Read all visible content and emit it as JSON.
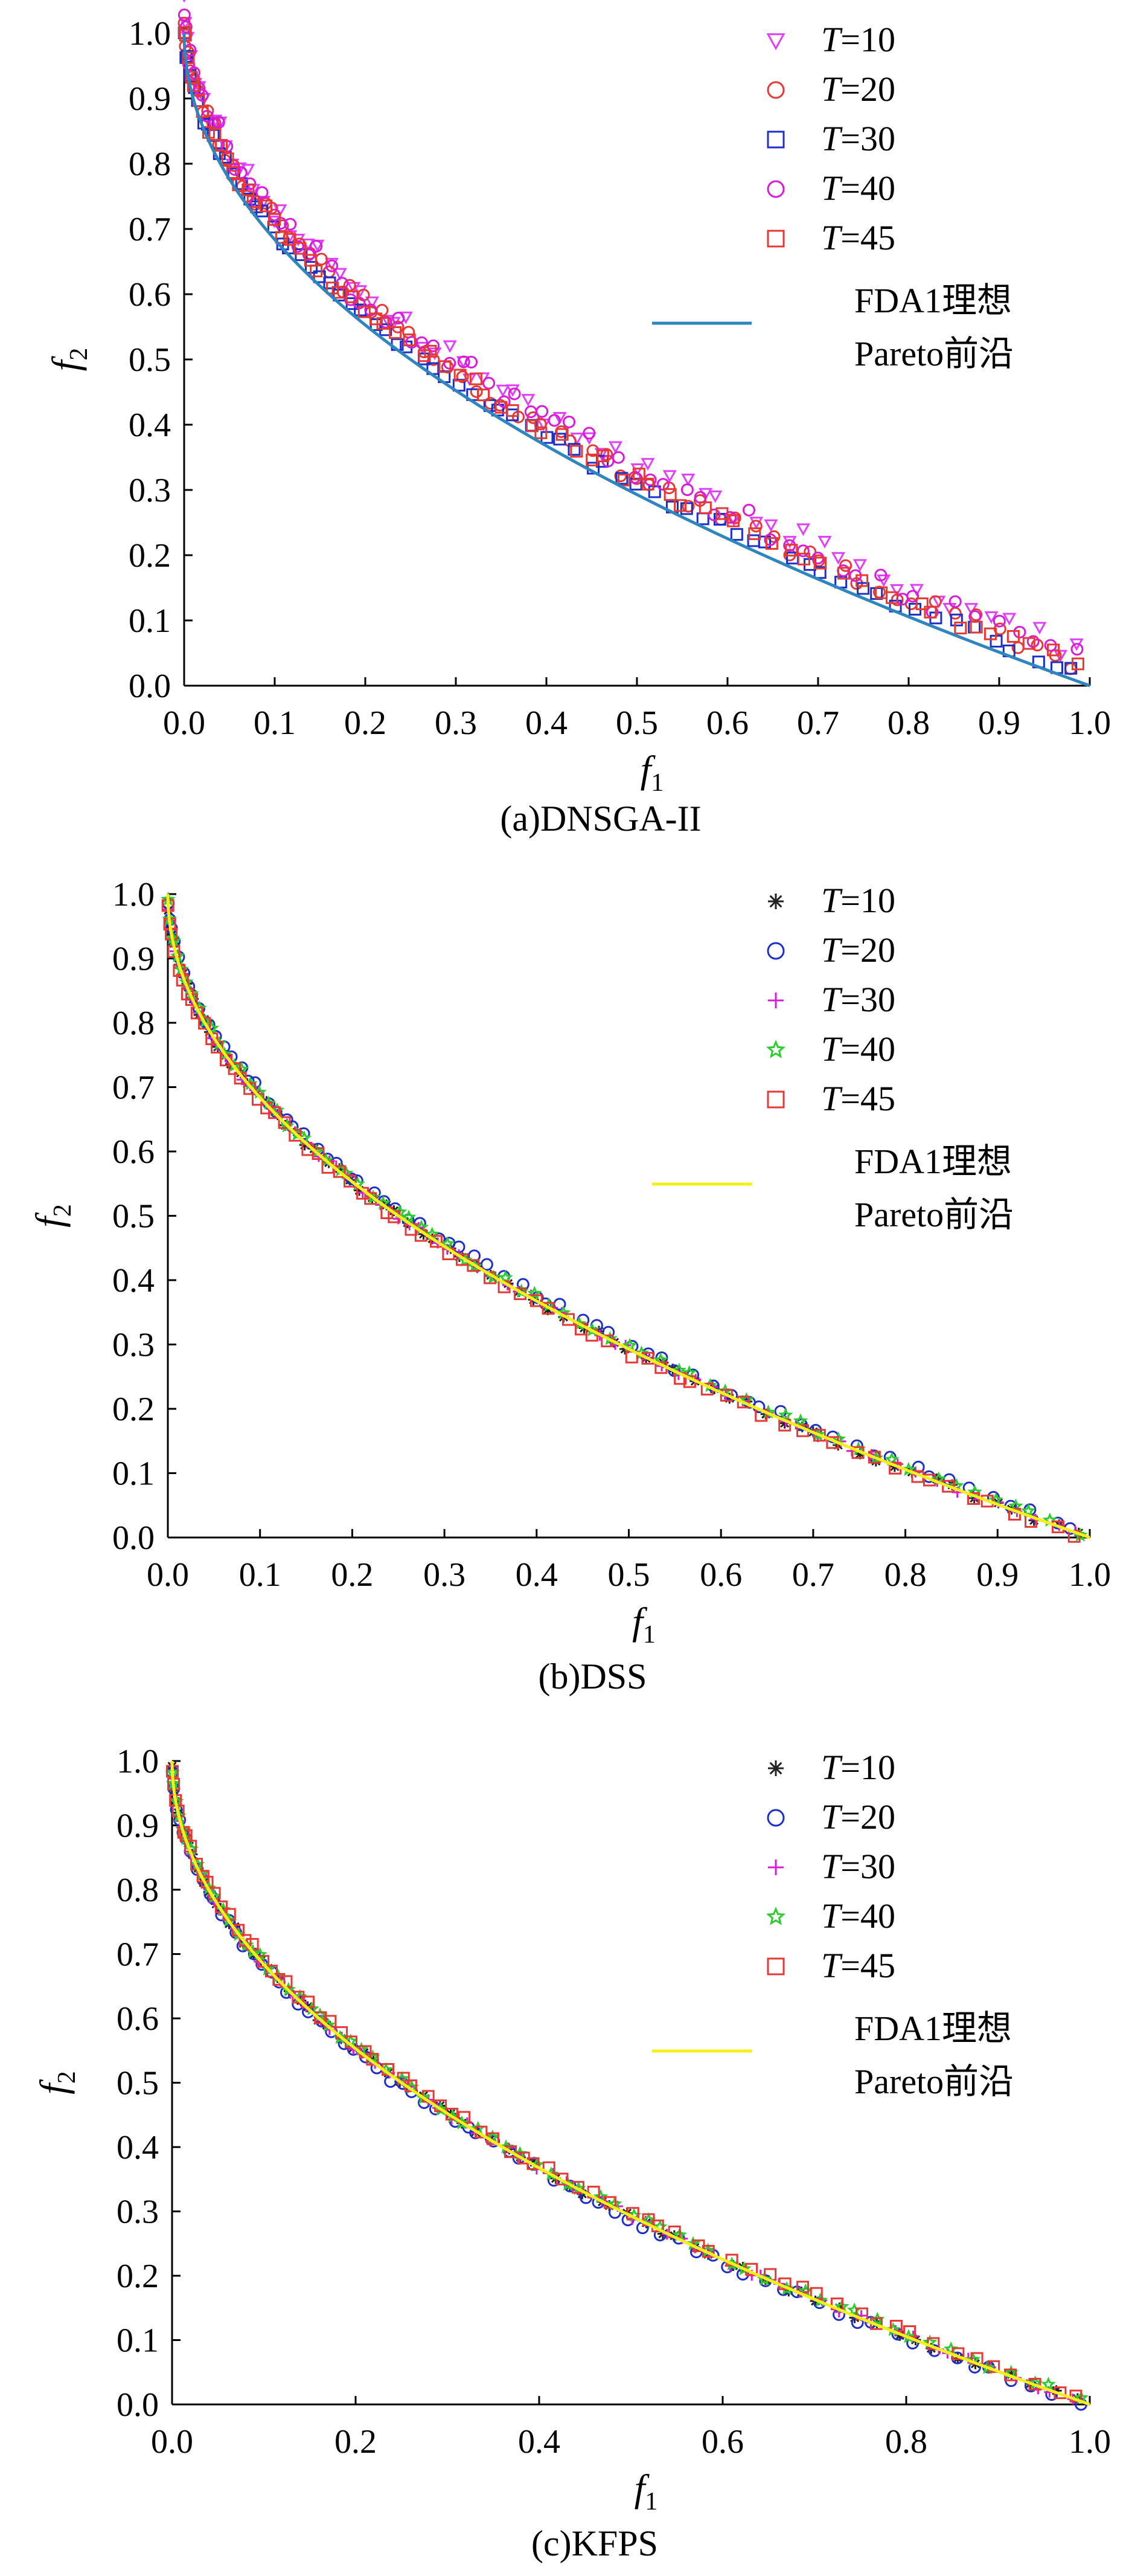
{
  "chart_data": [
    {
      "type": "scatter",
      "caption": "(a)DNSGA-II",
      "xlabel": "f",
      "xlabel_sub": "1",
      "ylabel": "f",
      "ylabel_sub": "2",
      "xlim": [
        0,
        1
      ],
      "ylim": [
        0,
        1
      ],
      "xticks": [
        "0.0",
        "0.1",
        "0.2",
        "0.3",
        "0.4",
        "0.5",
        "0.6",
        "0.7",
        "0.8",
        "0.9",
        "1.0"
      ],
      "yticks": [
        "0.0",
        "0.1",
        "0.2",
        "0.3",
        "0.4",
        "0.5",
        "0.6",
        "0.7",
        "0.8",
        "0.9",
        "1.0"
      ],
      "grid": false,
      "legend_position": "top-right",
      "reference_line": {
        "label_line1": "FDA1理想",
        "label_line2": "Pareto前沿",
        "color": "#2e86c1",
        "function": "1 - sqrt(x)"
      },
      "series": [
        {
          "name_prefix": "T",
          "name_value": "=10",
          "marker": "triangle-down",
          "color": "#e040fb",
          "offset": 0.045
        },
        {
          "name_prefix": "T",
          "name_value": "=20",
          "marker": "circle",
          "color": "#e53935",
          "offset": 0.03
        },
        {
          "name_prefix": "T",
          "name_value": "=30",
          "marker": "square",
          "color": "#1e2fc8",
          "offset": 0.015
        },
        {
          "name_prefix": "T",
          "name_value": "=40",
          "marker": "circle",
          "color": "#d81bd8",
          "offset": 0.04
        },
        {
          "name_prefix": "T",
          "name_value": "=45",
          "marker": "square",
          "color": "#e53935",
          "offset": 0.025
        }
      ]
    },
    {
      "type": "scatter",
      "caption": "(b)DSS",
      "xlabel": "f",
      "xlabel_sub": "1",
      "ylabel": "f",
      "ylabel_sub": "2",
      "xlim": [
        0,
        1
      ],
      "ylim": [
        0,
        1
      ],
      "xticks": [
        "0.0",
        "0.1",
        "0.2",
        "0.3",
        "0.4",
        "0.5",
        "0.6",
        "0.7",
        "0.8",
        "0.9",
        "1.0"
      ],
      "yticks": [
        "0.0",
        "0.1",
        "0.2",
        "0.3",
        "0.4",
        "0.5",
        "0.6",
        "0.7",
        "0.8",
        "0.9",
        "1.0"
      ],
      "grid": false,
      "legend_position": "top-right",
      "reference_line": {
        "label_line1": "FDA1理想",
        "label_line2": "Pareto前沿",
        "color": "#f5ef1a",
        "function": "1 - sqrt(x)"
      },
      "series": [
        {
          "name_prefix": "T",
          "name_value": "=10",
          "marker": "asterisk",
          "color": "#222222",
          "offset": 0.0
        },
        {
          "name_prefix": "T",
          "name_value": "=20",
          "marker": "circle",
          "color": "#1e2fc8",
          "offset": 0.008
        },
        {
          "name_prefix": "T",
          "name_value": "=30",
          "marker": "plus",
          "color": "#d81bd8",
          "offset": 0.0
        },
        {
          "name_prefix": "T",
          "name_value": "=40",
          "marker": "star",
          "color": "#2ecc2e",
          "offset": 0.004
        },
        {
          "name_prefix": "T",
          "name_value": "=45",
          "marker": "square",
          "color": "#e53935",
          "offset": -0.004
        }
      ]
    },
    {
      "type": "scatter",
      "caption": "(c)KFPS",
      "xlabel": "f",
      "xlabel_sub": "1",
      "ylabel": "f",
      "ylabel_sub": "2",
      "xlim": [
        0,
        1
      ],
      "ylim": [
        0,
        1
      ],
      "xticks": [
        "0.0",
        "0.2",
        "0.4",
        "0.6",
        "0.8",
        "1.0"
      ],
      "yticks": [
        "0.0",
        "0.1",
        "0.2",
        "0.3",
        "0.4",
        "0.5",
        "0.6",
        "0.7",
        "0.8",
        "0.9",
        "1.0"
      ],
      "grid": false,
      "legend_position": "top-right",
      "reference_line": {
        "label_line1": "FDA1理想",
        "label_line2": "Pareto前沿",
        "color": "#f5ef1a",
        "function": "1 - sqrt(x)"
      },
      "series": [
        {
          "name_prefix": "T",
          "name_value": "=10",
          "marker": "asterisk",
          "color": "#222222",
          "offset": 0.0
        },
        {
          "name_prefix": "T",
          "name_value": "=20",
          "marker": "circle",
          "color": "#1e2fc8",
          "offset": -0.004
        },
        {
          "name_prefix": "T",
          "name_value": "=30",
          "marker": "plus",
          "color": "#d81bd8",
          "offset": 0.0
        },
        {
          "name_prefix": "T",
          "name_value": "=40",
          "marker": "star",
          "color": "#2ecc2e",
          "offset": 0.003
        },
        {
          "name_prefix": "T",
          "name_value": "=45",
          "marker": "square",
          "color": "#e53935",
          "offset": 0.006
        }
      ]
    }
  ]
}
